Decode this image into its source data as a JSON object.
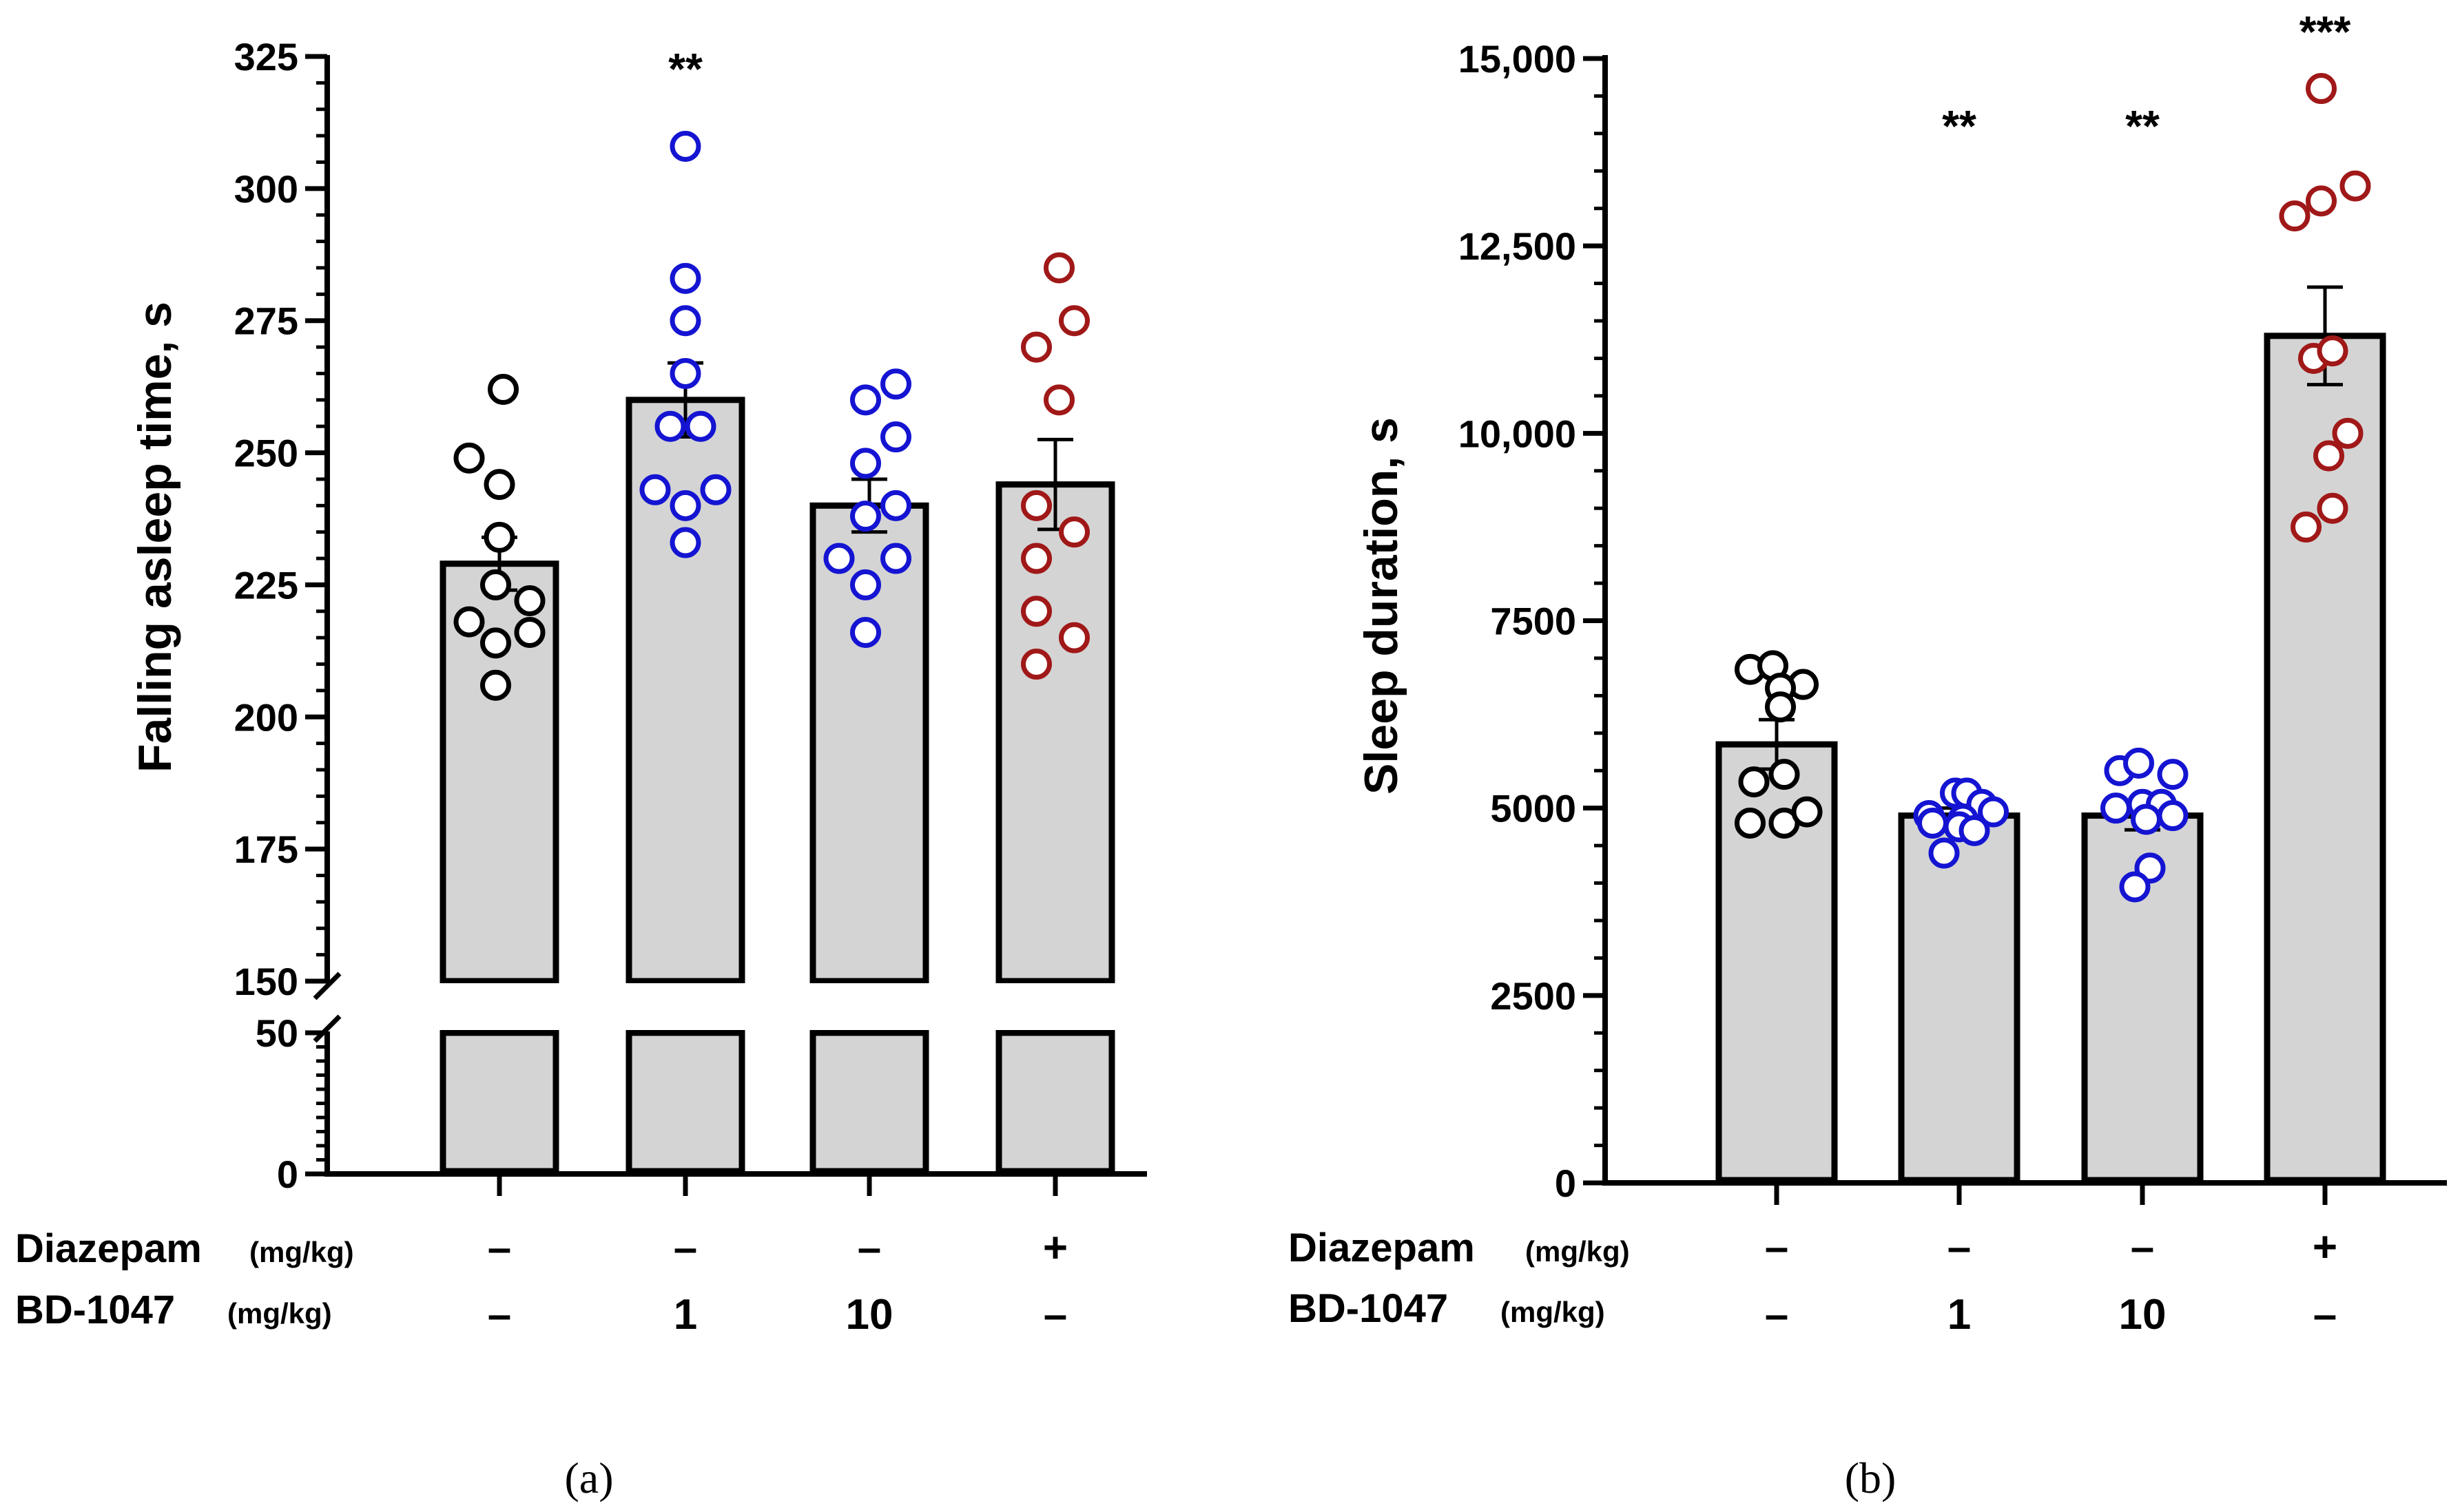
{
  "chart_data": [
    {
      "type": "bar",
      "panel_label": "(a)",
      "ylabel": "Falling asleep time, s",
      "axis_break": {
        "lower_segment": [
          0,
          50
        ],
        "upper_segment": [
          150,
          325
        ]
      },
      "ticks_lower": [
        {
          "value": 0,
          "label": "0"
        },
        {
          "value": 50,
          "label": "50"
        }
      ],
      "ticks_upper": [
        {
          "value": 150,
          "label": "150"
        },
        {
          "value": 175,
          "label": "175"
        },
        {
          "value": 200,
          "label": "200"
        },
        {
          "value": 225,
          "label": "225"
        },
        {
          "value": 250,
          "label": "250"
        },
        {
          "value": 275,
          "label": "275"
        },
        {
          "value": 300,
          "label": "300"
        },
        {
          "value": 325,
          "label": "325"
        }
      ],
      "groups": [
        {
          "mean": 229,
          "sem": 5,
          "color": "#000000",
          "sig": "",
          "points": [
            [
              -0.4,
              249
            ],
            [
              0.05,
              262
            ],
            [
              0.0,
              244
            ],
            [
              0.0,
              234
            ],
            [
              -0.05,
              225
            ],
            [
              0.4,
              222
            ],
            [
              -0.4,
              218
            ],
            [
              -0.05,
              214
            ],
            [
              0.4,
              216
            ],
            [
              -0.05,
              206
            ]
          ]
        },
        {
          "mean": 260,
          "sem": 7,
          "color": "#1414d2",
          "sig": "**",
          "points": [
            [
              0.0,
              308
            ],
            [
              0.0,
              283
            ],
            [
              0.0,
              275
            ],
            [
              0.0,
              265
            ],
            [
              -0.2,
              255
            ],
            [
              0.2,
              255
            ],
            [
              -0.4,
              243
            ],
            [
              0.4,
              243
            ],
            [
              0.0,
              240
            ],
            [
              0.0,
              233
            ]
          ]
        },
        {
          "mean": 240,
          "sem": 5,
          "color": "#1414d2",
          "sig": "",
          "points": [
            [
              -0.05,
              260
            ],
            [
              0.35,
              263
            ],
            [
              0.35,
              253
            ],
            [
              -0.05,
              248
            ],
            [
              -0.05,
              238
            ],
            [
              0.35,
              240
            ],
            [
              -0.4,
              230
            ],
            [
              0.35,
              230
            ],
            [
              -0.05,
              225
            ],
            [
              -0.05,
              216
            ]
          ]
        },
        {
          "mean": 244,
          "sem": 8.5,
          "color": "#a01818",
          "sig": "",
          "points": [
            [
              0.05,
              285
            ],
            [
              -0.25,
              270
            ],
            [
              0.25,
              275
            ],
            [
              0.05,
              260
            ],
            [
              -0.25,
              240
            ],
            [
              0.25,
              235
            ],
            [
              -0.25,
              230
            ],
            [
              -0.25,
              220
            ],
            [
              0.25,
              215
            ],
            [
              -0.25,
              210
            ]
          ]
        }
      ],
      "conditions": {
        "diazepam_label": "Diazepam",
        "diazepam_unit": "(mg/kg)",
        "diazepam_values": [
          "–",
          "–",
          "–",
          "+"
        ],
        "bd_label": "BD-1047",
        "bd_unit": "(mg/kg)",
        "bd_values": [
          "–",
          "1",
          "10",
          "–"
        ]
      }
    },
    {
      "type": "bar",
      "panel_label": "(b)",
      "ylabel": "Sleep duration, s",
      "ylim": [
        0,
        15000
      ],
      "ticks": [
        {
          "value": 0,
          "label": "0"
        },
        {
          "value": 2500,
          "label": "2500"
        },
        {
          "value": 5000,
          "label": "5000"
        },
        {
          "value": 7500,
          "label": "7500"
        },
        {
          "value": 10000,
          "label": "10,000"
        },
        {
          "value": 12500,
          "label": "12,500"
        },
        {
          "value": 15000,
          "label": "15,000"
        }
      ],
      "groups": [
        {
          "mean": 5850,
          "sem": 330,
          "color": "#000000",
          "sig": "",
          "points": [
            [
              -0.35,
              6850
            ],
            [
              -0.05,
              6900
            ],
            [
              0.35,
              6650
            ],
            [
              0.05,
              6600
            ],
            [
              0.05,
              6350
            ],
            [
              -0.3,
              5350
            ],
            [
              0.1,
              5450
            ],
            [
              -0.35,
              4800
            ],
            [
              0.1,
              4800
            ],
            [
              0.4,
              4950
            ]
          ]
        },
        {
          "mean": 4900,
          "sem": 100,
          "color": "#1414d2",
          "sig": "**",
          "points": [
            [
              -0.05,
              5200
            ],
            [
              0.1,
              5200
            ],
            [
              0.3,
              5050
            ],
            [
              -0.4,
              4900
            ],
            [
              0.05,
              4850
            ],
            [
              0.45,
              4950
            ],
            [
              -0.35,
              4800
            ],
            [
              0.0,
              4750
            ],
            [
              0.2,
              4700
            ],
            [
              -0.2,
              4400
            ]
          ]
        },
        {
          "mean": 4900,
          "sem": 190,
          "color": "#1414d2",
          "sig": "**",
          "points": [
            [
              -0.3,
              5500
            ],
            [
              -0.05,
              5600
            ],
            [
              0.4,
              5450
            ],
            [
              -0.35,
              5000
            ],
            [
              0.0,
              5050
            ],
            [
              0.25,
              5050
            ],
            [
              0.4,
              4900
            ],
            [
              0.05,
              4850
            ],
            [
              0.1,
              4200
            ],
            [
              -0.1,
              3950
            ]
          ]
        },
        {
          "mean": 11300,
          "sem": 650,
          "color": "#a01818",
          "sig": "***",
          "points": [
            [
              -0.05,
              14600
            ],
            [
              -0.4,
              12900
            ],
            [
              -0.05,
              13100
            ],
            [
              0.4,
              13300
            ],
            [
              -0.15,
              11000
            ],
            [
              0.1,
              11100
            ],
            [
              0.3,
              10000
            ],
            [
              0.05,
              9700
            ],
            [
              0.1,
              9000
            ],
            [
              -0.25,
              8750
            ]
          ]
        }
      ],
      "conditions": {
        "diazepam_label": "Diazepam",
        "diazepam_unit": "(mg/kg)",
        "diazepam_values": [
          "–",
          "–",
          "–",
          "+"
        ],
        "bd_label": "BD-1047",
        "bd_unit": "(mg/kg)",
        "bd_values": [
          "–",
          "1",
          "10",
          "–"
        ]
      }
    }
  ],
  "colors": {
    "bar_fill": "#d4d4d4",
    "bar_stroke": "#000000",
    "axis": "#000000"
  }
}
